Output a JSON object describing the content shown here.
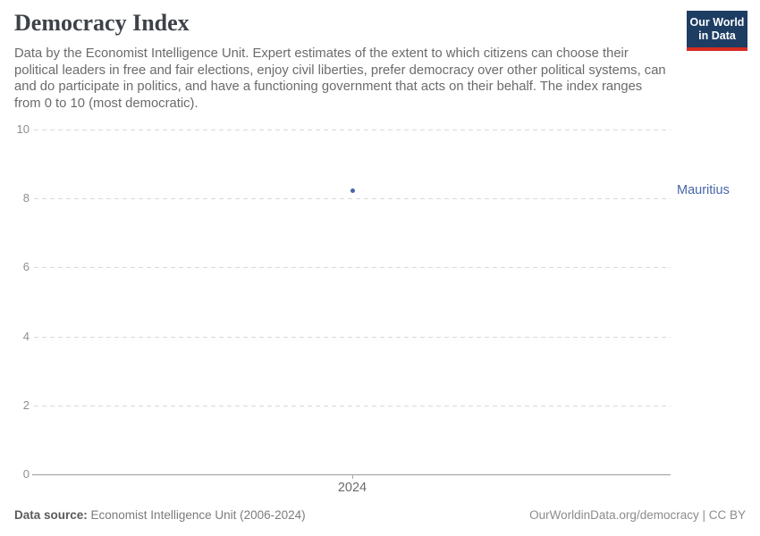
{
  "header": {
    "title": "Democracy Index",
    "subtitle_lines": [
      "Data by the Economist Intelligence Unit. Expert estimates of the extent to which citizens can choose their",
      "political leaders in free and fair elections, enjoy civil liberties, prefer democracy over other political systems, can",
      "and do participate in politics, and have a functioning government that acts on their behalf. The index ranges",
      "from 0 to 10 (most democratic)."
    ],
    "logo": {
      "line1": "Our World",
      "line2": "in Data",
      "bg_color": "#1d3d63",
      "accent_color": "#d42b21"
    }
  },
  "chart_data": {
    "type": "scatter",
    "title": "Democracy Index",
    "series": [
      {
        "name": "Mauritius",
        "x": [
          2024
        ],
        "values": [
          8.23
        ],
        "color": "#4766a8"
      }
    ],
    "x_ticks": [
      "2024"
    ],
    "y_ticks": [
      0,
      2,
      4,
      6,
      8,
      10
    ],
    "ylim": [
      0,
      10
    ],
    "xlabel": "",
    "ylabel": "",
    "grid": "horizontal-dashed",
    "legend": "entity-label-right"
  },
  "footer": {
    "source_label": "Data source:",
    "source_value": " Economist Intelligence Unit (2006-2024)",
    "attribution_link": "OurWorldinData.org/democracy",
    "attribution_separator": " | ",
    "attribution_license": "CC BY"
  }
}
